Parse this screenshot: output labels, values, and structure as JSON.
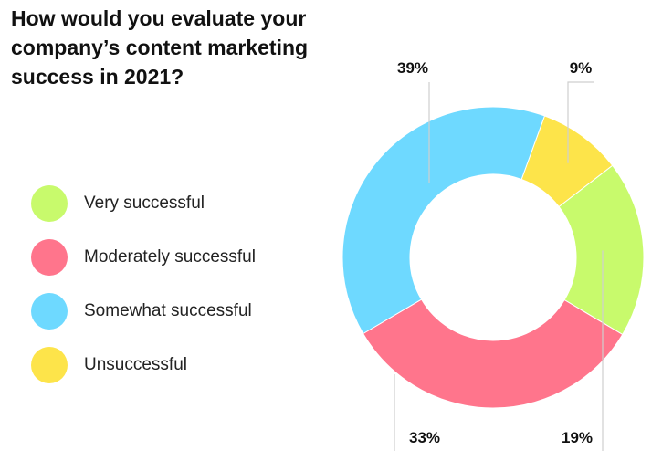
{
  "title": "How would you evaluate your company’s content marketing success in 2021?",
  "chart_data": {
    "type": "pie",
    "variant": "donut",
    "title": "How would you evaluate your company’s content marketing success in 2021?",
    "legend_position": "left",
    "slices": [
      {
        "label": "Very successful",
        "value": 19,
        "value_label": "19%",
        "color": "#c8fa6c"
      },
      {
        "label": "Moderately successful",
        "value": 33,
        "value_label": "33%",
        "color": "#ff758c"
      },
      {
        "label": "Somewhat successful",
        "value": 39,
        "value_label": "39%",
        "color": "#6ed9ff"
      },
      {
        "label": "Unsuccessful",
        "value": 9,
        "value_label": "9%",
        "color": "#fde44a"
      }
    ]
  }
}
